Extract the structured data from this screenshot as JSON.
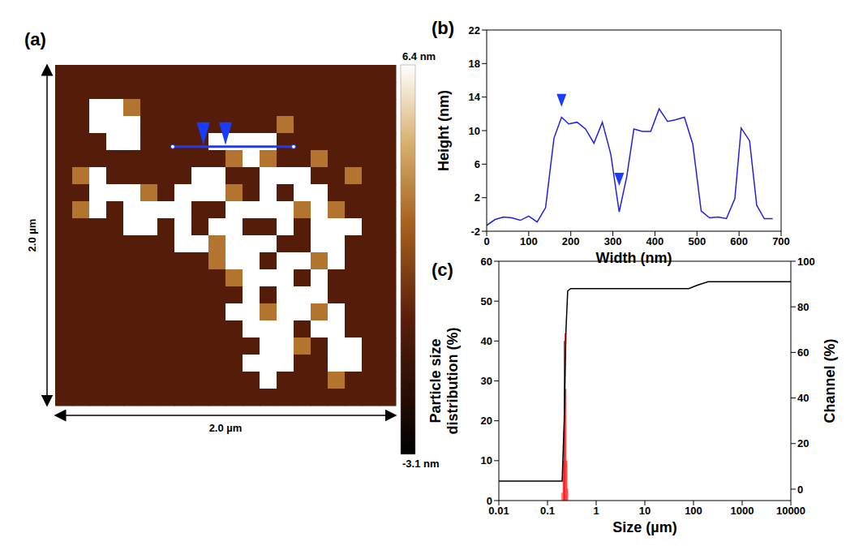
{
  "chart_data": [
    {
      "type": "heatmap",
      "panel": "(a)",
      "x_label": "2.0 µm",
      "y_label": "2.0 µm",
      "extent": [
        0,
        2.0
      ],
      "cells": [
        [
          0,
          0,
          0,
          0,
          0,
          0,
          0,
          0,
          0,
          0,
          0,
          0,
          0,
          0,
          0,
          0,
          0,
          0,
          0,
          0
        ],
        [
          0,
          0,
          0,
          0,
          0,
          0,
          0,
          0,
          0,
          0,
          0,
          0,
          0,
          0,
          0,
          0,
          0,
          0,
          0,
          0
        ],
        [
          0,
          0,
          6.4,
          6.4,
          3,
          0,
          0,
          0,
          0,
          0,
          0,
          0,
          0,
          0,
          0,
          0,
          0,
          0,
          0,
          0
        ],
        [
          0,
          0,
          6.4,
          6.4,
          6.4,
          0,
          0,
          0,
          0,
          0,
          0,
          0,
          0,
          3,
          0,
          0,
          0,
          0,
          0,
          0
        ],
        [
          0,
          0,
          0,
          6.4,
          6.4,
          0,
          0,
          0,
          0,
          6.4,
          6.4,
          6.4,
          6.4,
          0,
          0,
          0,
          0,
          0,
          0,
          0
        ],
        [
          0,
          0,
          0,
          0,
          0,
          0,
          0,
          0,
          0,
          0,
          3,
          6.4,
          3,
          0,
          0,
          3,
          0,
          0,
          0,
          0
        ],
        [
          0,
          3,
          6.4,
          0,
          0,
          0,
          0,
          0,
          6.4,
          6.4,
          0,
          0,
          6.4,
          6.4,
          6.4,
          0,
          0,
          3,
          0,
          0
        ],
        [
          0,
          0,
          6.4,
          6.4,
          6.4,
          3,
          0,
          6.4,
          6.4,
          6.4,
          3,
          0,
          6.4,
          0,
          6.4,
          6.4,
          0,
          0,
          0,
          0
        ],
        [
          0,
          3,
          6.4,
          0,
          6.4,
          6.4,
          6.4,
          6.4,
          0,
          0,
          6.4,
          6.4,
          6.4,
          6.4,
          3,
          6.4,
          3,
          0,
          0,
          0
        ],
        [
          0,
          0,
          0,
          0,
          6.4,
          6.4,
          0,
          6.4,
          0,
          6.4,
          6.4,
          0,
          0,
          6.4,
          0,
          6.4,
          6.4,
          6.4,
          0,
          0
        ],
        [
          0,
          0,
          0,
          0,
          0,
          0,
          0,
          6.4,
          6.4,
          3,
          6.4,
          6.4,
          6.4,
          0,
          0,
          6.4,
          6.4,
          0,
          0,
          0
        ],
        [
          0,
          0,
          0,
          0,
          0,
          0,
          0,
          0,
          0,
          3,
          6.4,
          6.4,
          0,
          6.4,
          6.4,
          3,
          6.4,
          0,
          0,
          0
        ],
        [
          0,
          0,
          0,
          0,
          0,
          0,
          0,
          0,
          0,
          0,
          3,
          6.4,
          6.4,
          6.4,
          0,
          6.4,
          0,
          0,
          0,
          0
        ],
        [
          0,
          0,
          0,
          0,
          0,
          0,
          0,
          0,
          0,
          0,
          0,
          6.4,
          0,
          6.4,
          6.4,
          6.4,
          0,
          0,
          0,
          0
        ],
        [
          0,
          0,
          0,
          0,
          0,
          0,
          0,
          0,
          0,
          0,
          6.4,
          6.4,
          3,
          6.4,
          6.4,
          3,
          6.4,
          0,
          0,
          0
        ],
        [
          0,
          0,
          0,
          0,
          0,
          0,
          0,
          0,
          0,
          0,
          0,
          6.4,
          6.4,
          6.4,
          0,
          6.4,
          6.4,
          0,
          0,
          0
        ],
        [
          0,
          0,
          0,
          0,
          0,
          0,
          0,
          0,
          0,
          0,
          0,
          0,
          6.4,
          6.4,
          3,
          0,
          6.4,
          6.4,
          0,
          0
        ],
        [
          0,
          0,
          0,
          0,
          0,
          0,
          0,
          0,
          0,
          0,
          0,
          6.4,
          6.4,
          6.4,
          0,
          0,
          6.4,
          6.4,
          0,
          0
        ],
        [
          0,
          0,
          0,
          0,
          0,
          0,
          0,
          0,
          0,
          0,
          0,
          0,
          6.4,
          0,
          0,
          0,
          3,
          0,
          0,
          0
        ],
        [
          0,
          0,
          0,
          0,
          0,
          0,
          0,
          0,
          0,
          0,
          0,
          0,
          0,
          0,
          0,
          0,
          0,
          0,
          0,
          0
        ]
      ],
      "colorbar": {
        "range": [
          -3.1,
          6.4
        ],
        "ticks": [
          {
            "value": 6.4,
            "label": "6.4 nm"
          },
          {
            "value": -3.1,
            "label": "-3.1 nm"
          }
        ]
      },
      "profile": {
        "x": [
          0.69,
          1.4
        ],
        "y": 0.48,
        "markers_x": [
          0.87,
          1.0
        ],
        "color": "#1a3cff"
      }
    },
    {
      "type": "line",
      "panel": "(b)",
      "x_label": "Width (nm)",
      "y_label": "Height (nm)",
      "color": "#2020e0",
      "x": [
        0,
        20,
        40,
        60,
        80,
        100,
        120,
        140,
        160,
        178,
        195,
        215,
        235,
        255,
        275,
        295,
        315,
        333,
        350,
        370,
        390,
        410,
        430,
        450,
        470,
        490,
        510,
        530,
        550,
        570,
        590,
        605,
        625,
        642,
        660,
        680
      ],
      "values": [
        -1.3,
        -0.6,
        -0.3,
        -0.4,
        -0.7,
        -0.2,
        -0.9,
        0.8,
        9.1,
        11.6,
        10.8,
        11.0,
        10.2,
        8.5,
        11.0,
        7.2,
        0.3,
        4.5,
        10.2,
        9.9,
        9.9,
        12.6,
        11.1,
        11.3,
        11.6,
        8.4,
        0.4,
        -0.4,
        -0.3,
        -0.5,
        1.9,
        10.3,
        8.8,
        1.1,
        -0.5,
        -0.5
      ],
      "xlim": [
        0,
        700
      ],
      "xticks": [
        0,
        100,
        200,
        300,
        400,
        500,
        600,
        700
      ],
      "ylim": [
        -2,
        22
      ],
      "yticks": [
        -2,
        2,
        6,
        10,
        14,
        18,
        22
      ],
      "markers": {
        "x": [
          178,
          315
        ],
        "y": [
          13.6,
          4.2
        ],
        "marker": "triangle-down",
        "color": "#1a3cff"
      }
    },
    {
      "type": "combo",
      "panel": "(c)",
      "x_label": "Size (µm)",
      "y_label": "Particle size distribution (%)",
      "y2_label": "Channel (%)",
      "log": "x",
      "xlim": [
        0.01,
        10000
      ],
      "xticks": [
        0.01,
        0.1,
        1,
        10,
        100,
        1000,
        10000
      ],
      "ylim": [
        0,
        60
      ],
      "yticks": [
        0,
        10,
        20,
        30,
        40,
        50,
        60
      ],
      "y2lim": [
        -5,
        100
      ],
      "y2ticks": [
        0,
        20,
        40,
        60,
        80,
        100
      ],
      "series": [
        {
          "type": "bar",
          "color": "#ff0000",
          "x": [
            0.2,
            0.21,
            0.22,
            0.23,
            0.24,
            0.25,
            0.26
          ],
          "values": [
            2,
            10,
            40,
            42,
            28,
            10,
            3
          ]
        },
        {
          "type": "line",
          "axis": "y2",
          "color": "#000000",
          "x": [
            0.01,
            0.2,
            0.22,
            0.24,
            0.26,
            0.3,
            80,
            120,
            200,
            10000
          ],
          "values": [
            3.5,
            3.5,
            30,
            70,
            87,
            88,
            88,
            89.5,
            91,
            91
          ]
        }
      ]
    }
  ]
}
